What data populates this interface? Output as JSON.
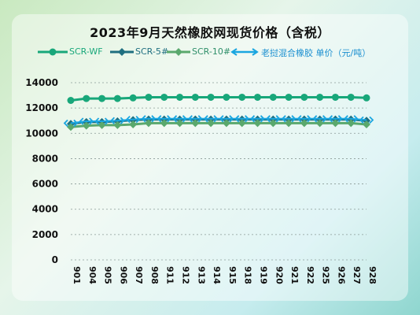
{
  "chart_data": {
    "type": "line",
    "title": "2023年9月天然橡胶网现货价格（含税）",
    "xlabel": "",
    "ylabel": "",
    "categories": [
      "901",
      "904",
      "905",
      "906",
      "907",
      "908",
      "911",
      "912",
      "913",
      "914",
      "915",
      "918",
      "919",
      "920",
      "921",
      "922",
      "925",
      "926",
      "927",
      "928"
    ],
    "ylim": [
      0,
      14000
    ],
    "yticks": [
      "14000",
      "12000",
      "10000",
      "8000",
      "6000",
      "4000",
      "2000",
      "0"
    ],
    "grid": true,
    "legend_position": "top",
    "series": [
      {
        "name": "SCR-WF",
        "color": "#18a77a",
        "marker": "circle",
        "values": [
          12600,
          12750,
          12750,
          12750,
          12800,
          12850,
          12850,
          12850,
          12850,
          12850,
          12850,
          12850,
          12850,
          12850,
          12850,
          12850,
          12850,
          12850,
          12850,
          12800
        ]
      },
      {
        "name": "SCR-5#",
        "color": "#1f6f80",
        "marker": "diamond",
        "values": [
          10750,
          10900,
          10900,
          10950,
          11050,
          11100,
          11100,
          11100,
          11100,
          11100,
          11100,
          11100,
          11100,
          11100,
          11100,
          11100,
          11100,
          11100,
          11100,
          11000
        ]
      },
      {
        "name": "SCR-10#",
        "color": "#5aa86d",
        "marker": "diamond",
        "values": [
          10500,
          10600,
          10650,
          10650,
          10700,
          10800,
          10800,
          10800,
          10800,
          10800,
          10800,
          10800,
          10800,
          10800,
          10800,
          10800,
          10800,
          10800,
          10800,
          10700
        ]
      },
      {
        "name": "老挝混合橡胶 单价（元/吨）",
        "color": "#1aa6e0",
        "marker": "arrow",
        "values": [
          10800,
          10950,
          10950,
          11000,
          11100,
          11150,
          11150,
          11150,
          11150,
          11150,
          11150,
          11150,
          11150,
          11150,
          11150,
          11150,
          11150,
          11150,
          11150,
          11050
        ]
      }
    ]
  }
}
